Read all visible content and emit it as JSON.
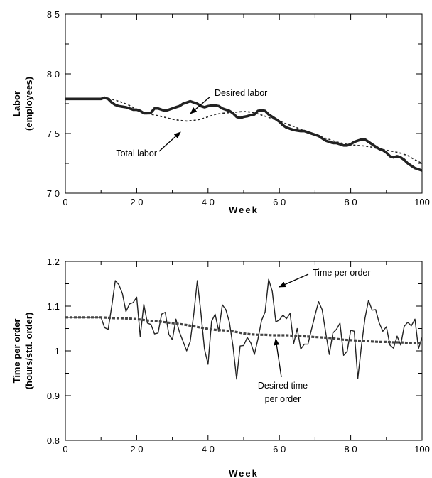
{
  "chart_data": [
    {
      "type": "line",
      "xlabel": "Week",
      "ylabel": [
        "Labor",
        "(employees)"
      ],
      "xlim": [
        0,
        100
      ],
      "ylim": [
        70,
        85
      ],
      "xticks": [
        0,
        20,
        40,
        60,
        80,
        100
      ],
      "xtick_labels": [
        "0",
        "2 0",
        "4 0",
        "6 0",
        "8 0",
        "100"
      ],
      "yticks": [
        70,
        75,
        80,
        85
      ],
      "ytick_labels": [
        "7 0",
        "7 5",
        "8 0",
        "8 5"
      ],
      "grid": false,
      "annotations": [
        {
          "text": "Desired labor",
          "series": "Desired labor",
          "x": 35,
          "y": 77.6
        },
        {
          "text": "Total labor",
          "series": "Total labor",
          "x": 31,
          "y": 76.1
        }
      ],
      "series": [
        {
          "name": "Desired labor",
          "style": "solid-thick",
          "color": "#222222",
          "x": [
            0,
            2,
            4,
            6,
            8,
            10,
            11,
            12,
            13,
            14,
            15,
            16,
            17,
            18,
            19,
            20,
            21,
            22,
            23,
            24,
            25,
            26,
            27,
            28,
            29,
            30,
            31,
            32,
            33,
            34,
            35,
            36,
            37,
            38,
            39,
            40,
            41,
            42,
            43,
            44,
            45,
            46,
            47,
            48,
            49,
            50,
            51,
            52,
            53,
            54,
            55,
            56,
            57,
            58,
            59,
            60,
            61,
            62,
            63,
            64,
            65,
            66,
            67,
            68,
            69,
            70,
            71,
            72,
            73,
            74,
            75,
            76,
            77,
            78,
            79,
            80,
            81,
            82,
            83,
            84,
            85,
            86,
            87,
            88,
            89,
            90,
            91,
            92,
            93,
            94,
            95,
            96,
            97,
            98,
            99,
            100
          ],
          "y": [
            77.9,
            77.9,
            77.9,
            77.9,
            77.9,
            77.9,
            78.0,
            77.9,
            77.6,
            77.4,
            77.3,
            77.25,
            77.2,
            77.1,
            77.0,
            77.0,
            76.9,
            76.7,
            76.7,
            76.75,
            77.1,
            77.1,
            77.0,
            76.9,
            77.0,
            77.1,
            77.2,
            77.3,
            77.5,
            77.6,
            77.7,
            77.6,
            77.5,
            77.3,
            77.2,
            77.3,
            77.35,
            77.35,
            77.3,
            77.1,
            77.0,
            76.9,
            76.7,
            76.4,
            76.3,
            76.4,
            76.45,
            76.55,
            76.6,
            76.9,
            76.95,
            76.9,
            76.6,
            76.4,
            76.2,
            76.0,
            75.7,
            75.5,
            75.4,
            75.3,
            75.25,
            75.2,
            75.2,
            75.1,
            75.0,
            74.9,
            74.8,
            74.6,
            74.4,
            74.3,
            74.2,
            74.2,
            74.1,
            74.0,
            74.0,
            74.1,
            74.3,
            74.4,
            74.5,
            74.5,
            74.3,
            74.1,
            73.9,
            73.7,
            73.6,
            73.4,
            73.1,
            73.0,
            73.1,
            73.0,
            72.8,
            72.5,
            72.3,
            72.1,
            72.0,
            71.9
          ],
          "x_note": ""
        },
        {
          "name": "Total labor",
          "style": "dashed",
          "color": "#222222",
          "x": [
            0,
            4,
            8,
            10,
            12,
            14,
            16,
            18,
            20,
            22,
            24,
            26,
            28,
            30,
            32,
            34,
            36,
            38,
            40,
            42,
            44,
            46,
            48,
            50,
            52,
            54,
            56,
            58,
            60,
            62,
            64,
            66,
            68,
            70,
            72,
            74,
            76,
            78,
            80,
            82,
            84,
            86,
            88,
            90,
            92,
            94,
            96,
            98,
            100
          ],
          "y": [
            77.9,
            77.9,
            77.9,
            77.9,
            77.95,
            77.8,
            77.6,
            77.35,
            77.0,
            76.75,
            76.6,
            76.5,
            76.35,
            76.2,
            76.1,
            76.05,
            76.1,
            76.2,
            76.4,
            76.6,
            76.7,
            76.75,
            76.8,
            76.85,
            76.8,
            76.65,
            76.45,
            76.25,
            76.05,
            75.8,
            75.6,
            75.35,
            75.1,
            74.9,
            74.7,
            74.5,
            74.3,
            74.15,
            74.05,
            74.0,
            73.95,
            73.85,
            73.7,
            73.6,
            73.5,
            73.35,
            73.15,
            72.8,
            72.5
          ]
        }
      ]
    },
    {
      "type": "line",
      "xlabel": "Week",
      "ylabel": [
        "Time per order",
        "(hours/std. order)"
      ],
      "xlim": [
        0,
        100
      ],
      "ylim": [
        0.8,
        1.2
      ],
      "xticks": [
        0,
        20,
        40,
        60,
        80,
        100
      ],
      "xtick_labels": [
        "0",
        "2 0",
        "4 0",
        "6 0",
        "8 0",
        "100"
      ],
      "yticks": [
        0.8,
        0.9,
        1.0,
        1.1,
        1.2
      ],
      "ytick_labels": [
        "0.8",
        "0.9",
        "1",
        "1.1",
        "1.2"
      ],
      "grid": false,
      "annotations": [
        {
          "text": "Time per order",
          "series": "Time per order",
          "x": 59,
          "y": 1.14
        },
        {
          "text": "Desired time",
          "text2": "per order",
          "series": "Desired time per order",
          "x": 60,
          "y": 1.035
        }
      ],
      "series": [
        {
          "name": "Time per order",
          "style": "solid-thin",
          "color": "#222222",
          "x": [
            0,
            10,
            11,
            12,
            13,
            14,
            15,
            16,
            17,
            18,
            19,
            20,
            21,
            22,
            23,
            24,
            25,
            26,
            27,
            28,
            29,
            30,
            31,
            32,
            33,
            34,
            35,
            36,
            37,
            38,
            39,
            40,
            41,
            42,
            43,
            44,
            45,
            46,
            47,
            48,
            49,
            50,
            51,
            52,
            53,
            54,
            55,
            56,
            57,
            58,
            59,
            60,
            61,
            62,
            63,
            64,
            65,
            66,
            67,
            68,
            69,
            70,
            71,
            72,
            73,
            74,
            75,
            76,
            77,
            78,
            79,
            80,
            81,
            82,
            83,
            84,
            85,
            86,
            87,
            88,
            89,
            90,
            91,
            92,
            93,
            94,
            95,
            96,
            97,
            98,
            99,
            100
          ],
          "y": [
            1.075,
            1.075,
            1.052,
            1.048,
            1.1,
            1.157,
            1.148,
            1.128,
            1.088,
            1.105,
            1.108,
            1.12,
            1.032,
            1.104,
            1.062,
            1.059,
            1.038,
            1.04,
            1.082,
            1.086,
            1.037,
            1.025,
            1.071,
            1.042,
            1.021,
            1.0,
            1.021,
            1.082,
            1.157,
            1.085,
            1.004,
            0.97,
            1.066,
            1.082,
            1.044,
            1.103,
            1.092,
            1.064,
            1.011,
            0.937,
            1.011,
            1.012,
            1.03,
            1.018,
            0.992,
            1.027,
            1.068,
            1.087,
            1.16,
            1.133,
            1.065,
            1.069,
            1.08,
            1.072,
            1.084,
            1.016,
            1.05,
            1.004,
            1.015,
            1.015,
            1.048,
            1.08,
            1.11,
            1.092,
            1.04,
            0.992,
            1.04,
            1.048,
            1.062,
            0.99,
            0.999,
            1.046,
            1.044,
            0.938,
            1.011,
            1.073,
            1.113,
            1.091,
            1.092,
            1.062,
            1.044,
            1.054,
            1.013,
            1.006,
            1.033,
            1.013,
            1.055,
            1.064,
            1.056,
            1.071,
            1.005,
            1.03
          ]
        },
        {
          "name": "Desired time per order",
          "style": "dashed-thick",
          "color": "#444444",
          "x": [
            0,
            10,
            12,
            14,
            16,
            18,
            20,
            22,
            24,
            26,
            28,
            30,
            32,
            34,
            36,
            38,
            40,
            42,
            44,
            46,
            48,
            50,
            52,
            54,
            56,
            58,
            60,
            62,
            64,
            66,
            68,
            70,
            72,
            74,
            76,
            78,
            80,
            82,
            84,
            86,
            88,
            90,
            92,
            94,
            96,
            98,
            100
          ],
          "y": [
            1.075,
            1.075,
            1.074,
            1.073,
            1.073,
            1.072,
            1.071,
            1.069,
            1.067,
            1.066,
            1.064,
            1.062,
            1.06,
            1.058,
            1.055,
            1.052,
            1.049,
            1.047,
            1.046,
            1.045,
            1.042,
            1.039,
            1.037,
            1.036,
            1.036,
            1.035,
            1.035,
            1.035,
            1.034,
            1.033,
            1.032,
            1.031,
            1.03,
            1.029,
            1.027,
            1.025,
            1.024,
            1.023,
            1.022,
            1.021,
            1.02,
            1.02,
            1.019,
            1.019,
            1.018,
            1.018,
            1.018
          ]
        }
      ]
    }
  ]
}
